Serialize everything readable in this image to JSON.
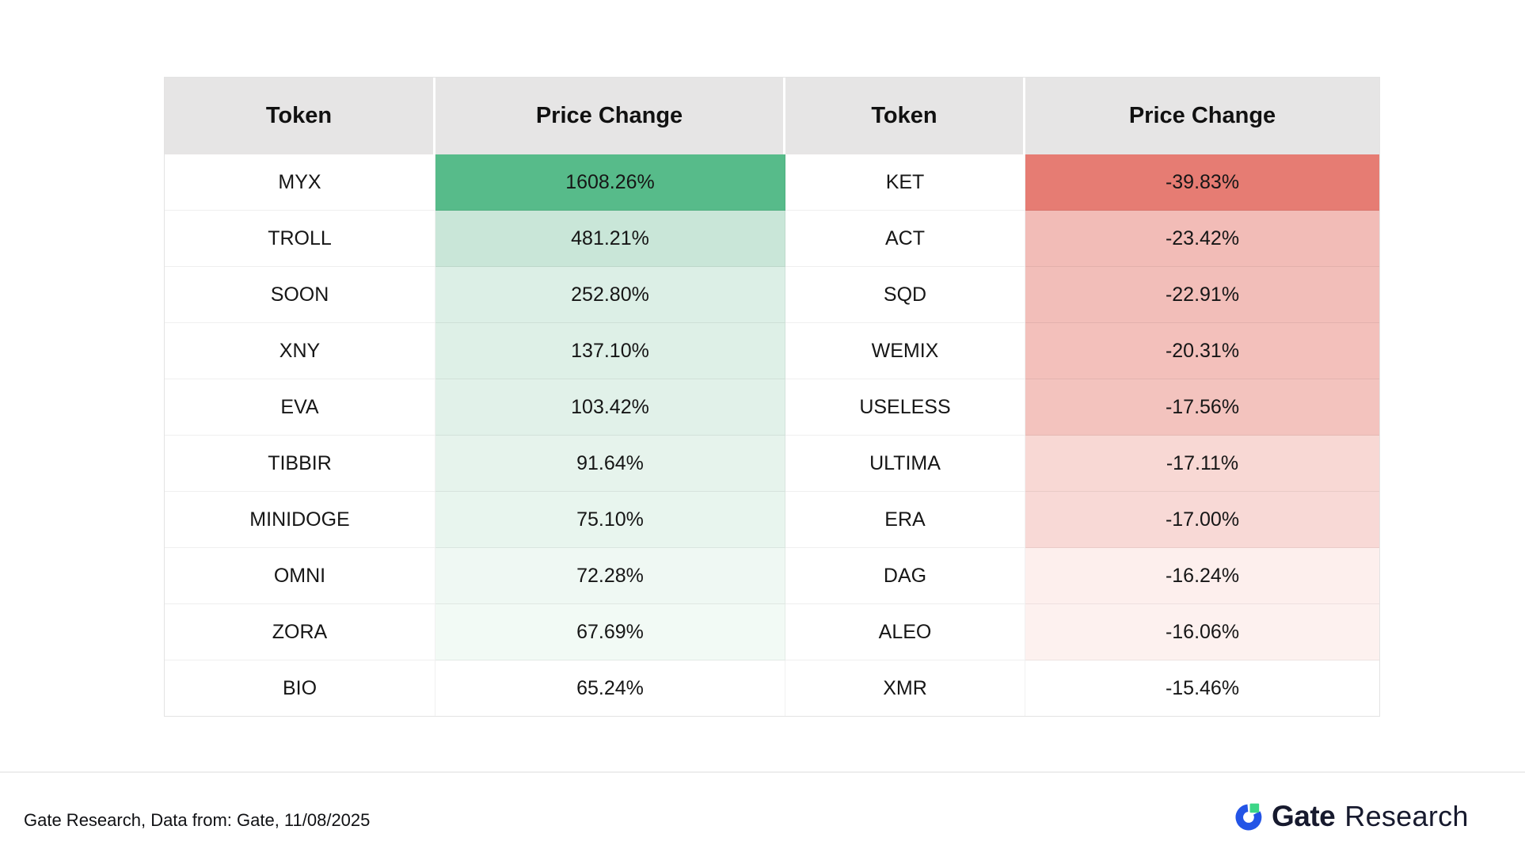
{
  "chart_data": {
    "type": "table",
    "columns": [
      "Token",
      "Price Change",
      "Token",
      "Price Change"
    ],
    "gainers": [
      {
        "token": "MYX",
        "change_pct": 1608.26
      },
      {
        "token": "TROLL",
        "change_pct": 481.21
      },
      {
        "token": "SOON",
        "change_pct": 252.8
      },
      {
        "token": "XNY",
        "change_pct": 137.1
      },
      {
        "token": "EVA",
        "change_pct": 103.42
      },
      {
        "token": "TIBBIR",
        "change_pct": 91.64
      },
      {
        "token": "MINIDOGE",
        "change_pct": 75.1
      },
      {
        "token": "OMNI",
        "change_pct": 72.28
      },
      {
        "token": "ZORA",
        "change_pct": 67.69
      },
      {
        "token": "BIO",
        "change_pct": 65.24
      }
    ],
    "losers": [
      {
        "token": "KET",
        "change_pct": -39.83
      },
      {
        "token": "ACT",
        "change_pct": -23.42
      },
      {
        "token": "SQD",
        "change_pct": -22.91
      },
      {
        "token": "WEMIX",
        "change_pct": -20.31
      },
      {
        "token": "USELESS",
        "change_pct": -17.56
      },
      {
        "token": "ULTIMA",
        "change_pct": -17.11
      },
      {
        "token": "ERA",
        "change_pct": -17.0
      },
      {
        "token": "DAG",
        "change_pct": -16.24
      },
      {
        "token": "ALEO",
        "change_pct": -16.06
      },
      {
        "token": "XMR",
        "change_pct": -15.46
      }
    ],
    "color_scale": {
      "positive_max": "#57BB8A",
      "negative_max": "#E67C73",
      "neutral": "#FFFFFF"
    },
    "legend_position": "none",
    "grid": false
  },
  "table": {
    "headers": [
      "Token",
      "Price Change",
      "Token",
      "Price Change"
    ],
    "rows": [
      {
        "gainer": {
          "token": "MYX",
          "change": "1608.26%",
          "bg": "#57BB8A"
        },
        "loser": {
          "token": "KET",
          "change": "-39.83%",
          "bg": "#E67C73"
        }
      },
      {
        "gainer": {
          "token": "TROLL",
          "change": "481.21%",
          "bg": "#C9E6D8"
        },
        "loser": {
          "token": "ACT",
          "change": "-23.42%",
          "bg": "#F2BCB7"
        }
      },
      {
        "gainer": {
          "token": "SOON",
          "change": "252.80%",
          "bg": "#DCEFE6"
        },
        "loser": {
          "token": "SQD",
          "change": "-22.91%",
          "bg": "#F2BEB9"
        }
      },
      {
        "gainer": {
          "token": "XNY",
          "change": "137.10%",
          "bg": "#DEF0E7"
        },
        "loser": {
          "token": "WEMIX",
          "change": "-20.31%",
          "bg": "#F3C0BB"
        }
      },
      {
        "gainer": {
          "token": "EVA",
          "change": "103.42%",
          "bg": "#E1F1E9"
        },
        "loser": {
          "token": "USELESS",
          "change": "-17.56%",
          "bg": "#F3C3BE"
        }
      },
      {
        "gainer": {
          "token": "TIBBIR",
          "change": "91.64%",
          "bg": "#E6F3EC"
        },
        "loser": {
          "token": "ULTIMA",
          "change": "-17.11%",
          "bg": "#F8D8D4"
        }
      },
      {
        "gainer": {
          "token": "MINIDOGE",
          "change": "75.10%",
          "bg": "#E8F5EE"
        },
        "loser": {
          "token": "ERA",
          "change": "-17.00%",
          "bg": "#F8D9D6"
        }
      },
      {
        "gainer": {
          "token": "OMNI",
          "change": "72.28%",
          "bg": "#EFF8F3"
        },
        "loser": {
          "token": "DAG",
          "change": "-16.24%",
          "bg": "#FDEFED"
        }
      },
      {
        "gainer": {
          "token": "ZORA",
          "change": "67.69%",
          "bg": "#F2FAF5"
        },
        "loser": {
          "token": "ALEO",
          "change": "-16.06%",
          "bg": "#FDF1EF"
        }
      },
      {
        "gainer": {
          "token": "BIO",
          "change": "65.24%",
          "bg": "#FFFFFF"
        },
        "loser": {
          "token": "XMR",
          "change": "-15.46%",
          "bg": "#FFFFFF"
        }
      }
    ]
  },
  "footer": {
    "source_note": "Gate Research, Data from: Gate, 11/08/2025",
    "logo": {
      "brand": "Gate",
      "suffix": "Research"
    }
  },
  "colors": {
    "header_bg": "#E6E5E5",
    "logo_blue": "#2354E6",
    "logo_green": "#3CD687",
    "logo_text": "#171A2E"
  }
}
